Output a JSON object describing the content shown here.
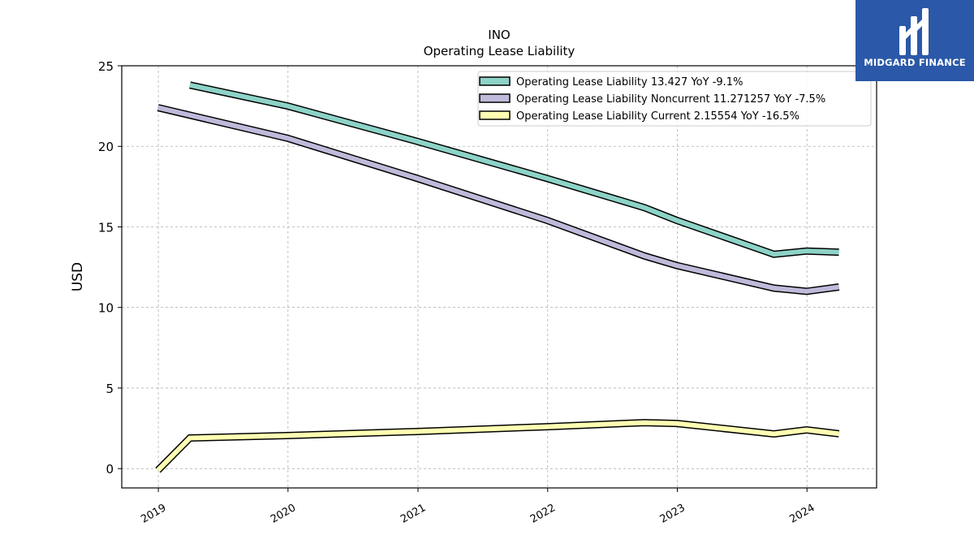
{
  "chart_data": {
    "type": "line",
    "title": "INO",
    "subtitle": "Operating Lease Liability",
    "ylabel": "USD",
    "xlabel": "",
    "ylim": [
      -1.2,
      25
    ],
    "xlim": [
      "2018-09-20",
      "2024-07-15"
    ],
    "yticks": [
      0,
      5,
      10,
      15,
      20,
      25
    ],
    "xticks": [
      "2019",
      "2020",
      "2021",
      "2022",
      "2023",
      "2024"
    ],
    "grid": true,
    "legend_position": "top-right",
    "series": [
      {
        "name": "Operating Lease Liability",
        "legend": "Operating Lease Liability  13.427 YoY -9.1%",
        "color": "#8dd3c7",
        "x": [
          "2019-03-31",
          "2019-12-31",
          "2020-12-31",
          "2021-12-31",
          "2022-09-30",
          "2022-12-31",
          "2023-09-30",
          "2023-12-31",
          "2024-03-31"
        ],
        "y": [
          23.8,
          22.5,
          20.3,
          18.0,
          16.2,
          15.4,
          13.3,
          13.5,
          13.43
        ]
      },
      {
        "name": "Operating Lease Liability Noncurrent",
        "legend": "Operating Lease Liability Noncurrent  11.271257 YoY -7.5%",
        "color": "#bebada",
        "x": [
          "2018-12-31",
          "2019-12-31",
          "2020-12-31",
          "2021-12-31",
          "2022-09-30",
          "2022-12-31",
          "2023-09-30",
          "2023-12-31",
          "2024-03-31"
        ],
        "y": [
          22.4,
          20.5,
          18.0,
          15.4,
          13.2,
          12.6,
          11.2,
          11.0,
          11.27
        ]
      },
      {
        "name": "Operating Lease Liability Current",
        "legend": "Operating Lease Liability Current  2.15554 YoY -16.5%",
        "color": "#ffffb3",
        "x": [
          "2018-12-31",
          "2019-03-31",
          "2019-12-31",
          "2020-12-31",
          "2021-12-31",
          "2022-09-30",
          "2022-12-31",
          "2023-09-30",
          "2023-12-31",
          "2024-03-31"
        ],
        "y": [
          -0.1,
          1.9,
          2.05,
          2.3,
          2.6,
          2.85,
          2.8,
          2.15,
          2.4,
          2.16
        ]
      }
    ]
  },
  "brand": {
    "name": "MIDGARD FINANCE",
    "color": "#2b58a8",
    "icon": "midgard-logo-icon"
  }
}
